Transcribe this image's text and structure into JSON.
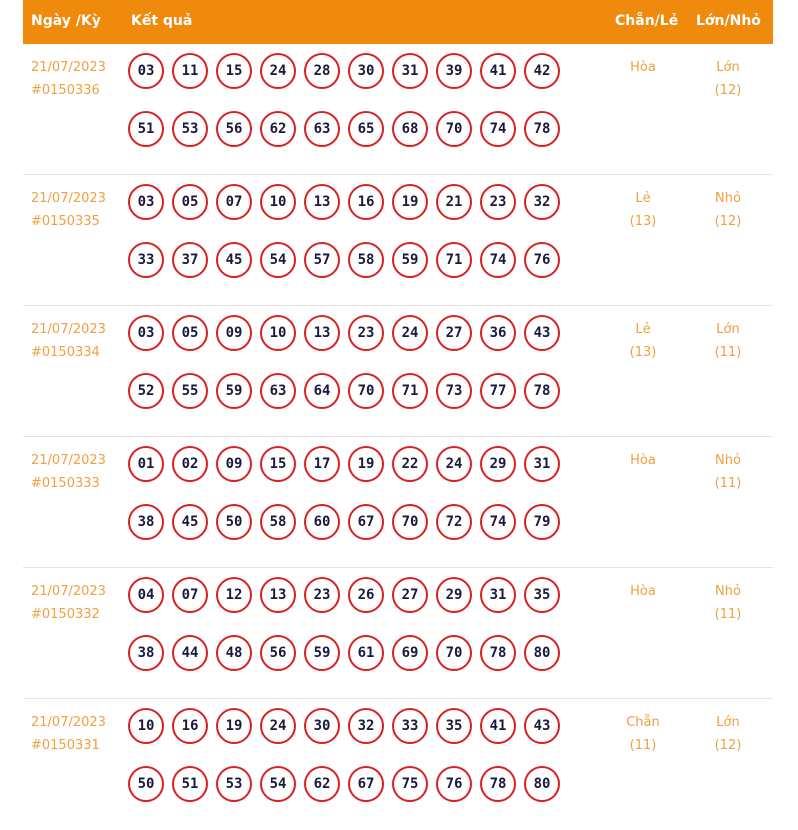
{
  "header": {
    "date": "Ngày /Kỳ",
    "result": "Kết quả",
    "parity": "Chẵn/Lẻ",
    "size": "Lớn/Nhỏ"
  },
  "rows": [
    {
      "date": "21/07/2023",
      "draw": "#0150336",
      "numbers": [
        "03",
        "11",
        "15",
        "24",
        "28",
        "30",
        "31",
        "39",
        "41",
        "42",
        "51",
        "53",
        "56",
        "62",
        "63",
        "65",
        "68",
        "70",
        "74",
        "78"
      ],
      "parity": "Hòa",
      "parity_count": "",
      "size": "Lớn",
      "size_count": "(12)"
    },
    {
      "date": "21/07/2023",
      "draw": "#0150335",
      "numbers": [
        "03",
        "05",
        "07",
        "10",
        "13",
        "16",
        "19",
        "21",
        "23",
        "32",
        "33",
        "37",
        "45",
        "54",
        "57",
        "58",
        "59",
        "71",
        "74",
        "76"
      ],
      "parity": "Lẻ",
      "parity_count": "(13)",
      "size": "Nhỏ",
      "size_count": "(12)"
    },
    {
      "date": "21/07/2023",
      "draw": "#0150334",
      "numbers": [
        "03",
        "05",
        "09",
        "10",
        "13",
        "23",
        "24",
        "27",
        "36",
        "43",
        "52",
        "55",
        "59",
        "63",
        "64",
        "70",
        "71",
        "73",
        "77",
        "78"
      ],
      "parity": "Lẻ",
      "parity_count": "(13)",
      "size": "Lớn",
      "size_count": "(11)"
    },
    {
      "date": "21/07/2023",
      "draw": "#0150333",
      "numbers": [
        "01",
        "02",
        "09",
        "15",
        "17",
        "19",
        "22",
        "24",
        "29",
        "31",
        "38",
        "45",
        "50",
        "58",
        "60",
        "67",
        "70",
        "72",
        "74",
        "79"
      ],
      "parity": "Hòa",
      "parity_count": "",
      "size": "Nhỏ",
      "size_count": "(11)"
    },
    {
      "date": "21/07/2023",
      "draw": "#0150332",
      "numbers": [
        "04",
        "07",
        "12",
        "13",
        "23",
        "26",
        "27",
        "29",
        "31",
        "35",
        "38",
        "44",
        "48",
        "56",
        "59",
        "61",
        "69",
        "70",
        "78",
        "80"
      ],
      "parity": "Hòa",
      "parity_count": "",
      "size": "Nhỏ",
      "size_count": "(11)"
    },
    {
      "date": "21/07/2023",
      "draw": "#0150331",
      "numbers": [
        "10",
        "16",
        "19",
        "24",
        "30",
        "32",
        "33",
        "35",
        "41",
        "43",
        "50",
        "51",
        "53",
        "54",
        "62",
        "67",
        "75",
        "76",
        "78",
        "80"
      ],
      "parity": "Chẵn",
      "parity_count": "(11)",
      "size": "Lớn",
      "size_count": "(12)"
    }
  ]
}
